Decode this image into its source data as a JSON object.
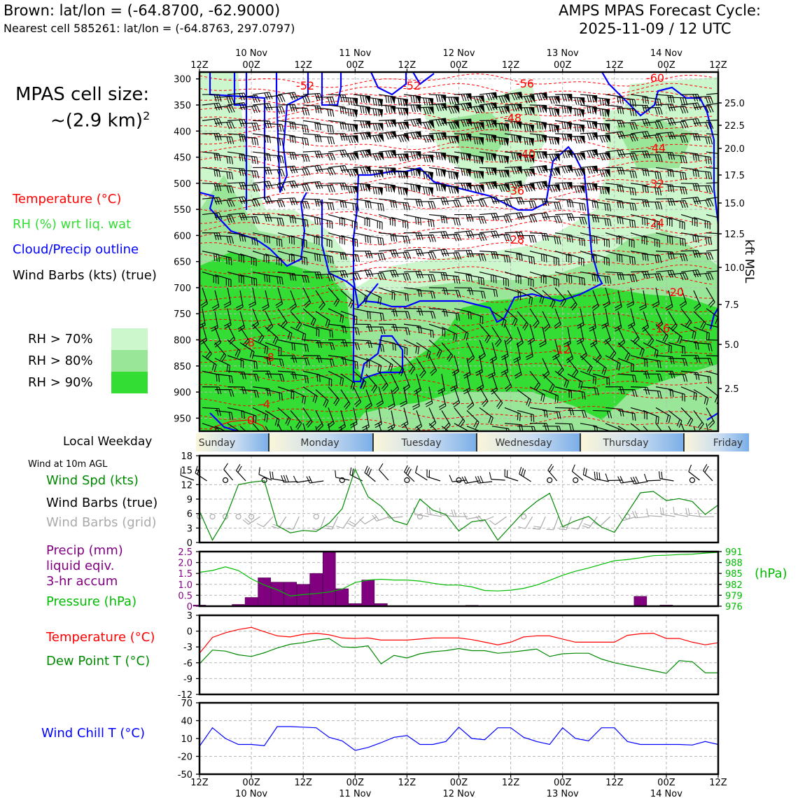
{
  "header": {
    "station_line": "Brown: lat/lon = (-64.8700, -62.9000)",
    "cell_line": "Nearest cell 585261: lat/lon = (-64.8763, 297.0797)",
    "cycle_line1": "AMPS MPAS Forecast Cycle:",
    "cycle_line2": "2025-11-09 / 12 UTC"
  },
  "left_panel": {
    "cell_size_label": "MPAS cell size:",
    "cell_size_value": "~(2.9 km)",
    "cell_size_exp": "2",
    "legend": {
      "temperature": "Temperature (°C)",
      "rh": "RH (%) wrt liq. wat",
      "cloud": "Cloud/Precip outline",
      "wind": "Wind Barbs (kts) (true)"
    },
    "rh_legend": [
      {
        "label": "RH > 70%",
        "color": "#ccf7cc"
      },
      {
        "label": "RH > 80%",
        "color": "#99e699"
      },
      {
        "label": "RH > 90%",
        "color": "#33dd33"
      }
    ],
    "local_weekday_label": "Local Weekday",
    "wind_10m_label": "Wind at 10m AGL",
    "wind_legend": {
      "speed": "Wind Spd (kts)",
      "barbs_true": "Wind Barbs (true)",
      "barbs_grid": "Wind Barbs (grid)"
    },
    "precip_legend": {
      "line1": "Precip (mm)",
      "line2": "liquid eqiv.",
      "line3": "3-hr accum"
    },
    "pressure_legend": "Pressure (hPa)",
    "temp_legend": "Temperature (°C)",
    "dew_legend": "Dew Point T (°C)",
    "windchill_legend": "Wind Chill T (°C)"
  },
  "time_axis": {
    "ticks": [
      "12Z",
      "00Z",
      "12Z",
      "00Z",
      "12Z",
      "00Z",
      "12Z",
      "00Z",
      "12Z",
      "00Z",
      "12Z"
    ],
    "dates": [
      "10 Nov",
      "11 Nov",
      "12 Nov",
      "13 Nov",
      "14 Nov"
    ],
    "weekdays": [
      "Sunday",
      "Monday",
      "Tuesday",
      "Wednesday",
      "Thursday",
      "Friday"
    ]
  },
  "colors": {
    "temperature": "#ff0000",
    "rh_label": "#33dd33",
    "cloud": "#0000ff",
    "wind_speed": "#008800",
    "barbs_grid": "#aaaaaa",
    "precip": "#800080",
    "pressure": "#00bb00",
    "dewpoint": "#008800",
    "windchill": "#0000ff"
  },
  "chart_data": [
    {
      "type": "heatmap",
      "y_ticks": [
        "300",
        "350",
        "400",
        "450",
        "500",
        "550",
        "600",
        "650",
        "700",
        "750",
        "800",
        "850",
        "900",
        "950"
      ],
      "y_right_ticks": [
        "25.0",
        "22.5",
        "20.0",
        "17.5",
        "15.0",
        "12.5",
        "10.0",
        "7.5",
        "5.0",
        "2.5"
      ],
      "y_right_label": "kft MSL",
      "temperature_contour_labels": [
        "-52",
        "-52",
        "-56",
        "-60",
        "-48",
        "-40",
        "-44",
        "-36",
        "-32",
        "-28",
        "-24",
        "-20",
        "-16",
        "-12",
        "-8",
        "-8",
        "-4",
        "0"
      ]
    },
    {
      "type": "line",
      "name": "wind_speed_10m",
      "ylim": [
        0,
        18
      ],
      "y_ticks": [
        "0",
        "3",
        "6",
        "9",
        "12",
        "15",
        "18"
      ],
      "x_hours": [
        0,
        3,
        6,
        9,
        12,
        15,
        18,
        21,
        24,
        27,
        30,
        33,
        36,
        39,
        42,
        45,
        48,
        51,
        54,
        57,
        60,
        63,
        66,
        69,
        72,
        75,
        78,
        81,
        84,
        87,
        90,
        93,
        96,
        99,
        102,
        105,
        108,
        111,
        114,
        117,
        120
      ],
      "values": [
        6.5,
        0.5,
        5,
        12,
        12.5,
        12.8,
        3.5,
        2,
        2.5,
        2.3,
        4,
        7,
        15.2,
        9.5,
        7.5,
        4.5,
        3.7,
        9,
        6.7,
        5.8,
        2.4,
        4.3,
        4.7,
        0.5,
        3.4,
        6.3,
        8.5,
        10.2,
        3.3,
        4.5,
        5.4,
        3.2,
        2.1,
        6.2,
        10.3,
        10.6,
        8.7,
        9.1,
        8.5,
        5.8,
        7.8
      ]
    },
    {
      "type": "bar",
      "name": "precip_3hr",
      "ylim": [
        0,
        2.5
      ],
      "y_ticks": [
        "0",
        "0.5",
        "1.0",
        "1.5",
        "2.0",
        "2.5"
      ],
      "x_hours": [
        0,
        3,
        6,
        9,
        12,
        15,
        18,
        21,
        24,
        27,
        30,
        33,
        36,
        39,
        42,
        45,
        48,
        51,
        54,
        57,
        60,
        63,
        66,
        69,
        72,
        75,
        78,
        81,
        84,
        87,
        90,
        93,
        96,
        99,
        102,
        105,
        108,
        111,
        114,
        117,
        120
      ],
      "values": [
        0.05,
        0,
        0,
        0.08,
        0.4,
        1.3,
        1.1,
        1.1,
        1.0,
        1.5,
        2.5,
        0.8,
        0.12,
        1.2,
        0.12,
        0,
        0,
        0,
        0,
        0,
        0,
        0.04,
        0,
        0,
        0,
        0,
        0,
        0,
        0,
        0,
        0,
        0,
        0,
        0,
        0.45,
        0,
        0.05,
        0,
        0,
        0,
        0
      ]
    },
    {
      "type": "line",
      "name": "pressure",
      "ylim": [
        976,
        991
      ],
      "y_ticks": [
        "976",
        "979",
        "982",
        "985",
        "988",
        "991"
      ],
      "y_label": "(hPa)",
      "x_hours": [
        0,
        3,
        6,
        9,
        12,
        15,
        18,
        21,
        24,
        27,
        30,
        33,
        36,
        39,
        42,
        45,
        48,
        51,
        54,
        57,
        60,
        63,
        66,
        69,
        72,
        75,
        78,
        81,
        84,
        87,
        90,
        93,
        96,
        99,
        102,
        105,
        108,
        111,
        114,
        117,
        120
      ],
      "values": [
        985.3,
        985.8,
        986.8,
        985.8,
        983.5,
        981.8,
        980.5,
        978.8,
        979.2,
        979.5,
        979.9,
        980.7,
        982.5,
        983.2,
        983.4,
        983.2,
        983.2,
        982.9,
        982.3,
        981.8,
        981.8,
        981.3,
        980.3,
        980.2,
        980.4,
        980.9,
        981.8,
        983.1,
        984.5,
        985.6,
        986.5,
        987.5,
        988.5,
        988.8,
        989.3,
        989.9,
        990.0,
        990.2,
        990.3,
        990.6,
        990.8
      ]
    },
    {
      "type": "line",
      "name": "temperature_dewpoint",
      "ylim": [
        -12,
        3
      ],
      "y_ticks": [
        "-12",
        "-9",
        "-6",
        "-3",
        "0",
        "3"
      ],
      "x_hours": [
        0,
        3,
        6,
        9,
        12,
        15,
        18,
        21,
        24,
        27,
        30,
        33,
        36,
        39,
        42,
        45,
        48,
        51,
        54,
        57,
        60,
        63,
        66,
        69,
        72,
        75,
        78,
        81,
        84,
        87,
        90,
        93,
        96,
        99,
        102,
        105,
        108,
        111,
        114,
        117,
        120
      ],
      "series": [
        {
          "name": "temperature",
          "values": [
            -4.2,
            -1.2,
            -0.3,
            0.3,
            0.7,
            -0.1,
            -0.9,
            -1.1,
            -0.6,
            -0.4,
            -0.7,
            -1.3,
            -1.4,
            -1.3,
            -1.7,
            -1.7,
            -1.7,
            -1.5,
            -1.3,
            -1.3,
            -1.3,
            -1.6,
            -2.1,
            -2.6,
            -2.1,
            -1.1,
            -0.9,
            -0.9,
            -1.5,
            -2.1,
            -2.1,
            -2.1,
            -2.1,
            -0.8,
            -0.5,
            -0.4,
            -1.4,
            -1.4,
            -2.1,
            -2.6,
            -2.2
          ]
        },
        {
          "name": "dewpoint",
          "values": [
            -6.2,
            -3.6,
            -3.8,
            -4.5,
            -4.8,
            -4.1,
            -3.2,
            -2.5,
            -2.2,
            -1.7,
            -1.4,
            -3.0,
            -3.1,
            -2.8,
            -6.2,
            -4.6,
            -5.1,
            -4.3,
            -3.9,
            -3.7,
            -3.3,
            -3.7,
            -3.7,
            -4.2,
            -4.0,
            -3.7,
            -3.4,
            -4.8,
            -4.3,
            -4.2,
            -4.2,
            -5.3,
            -6.0,
            -6.5,
            -7.0,
            -7.5,
            -8.0,
            -5.6,
            -5.8,
            -7.9,
            -7.9
          ]
        }
      ]
    },
    {
      "type": "line",
      "name": "wind_chill",
      "ylim": [
        -50,
        70
      ],
      "y_ticks": [
        "-50",
        "-20",
        "10",
        "40",
        "70"
      ],
      "x_hours": [
        0,
        3,
        6,
        9,
        12,
        15,
        18,
        21,
        24,
        27,
        30,
        33,
        36,
        39,
        42,
        45,
        48,
        51,
        54,
        57,
        60,
        63,
        66,
        69,
        72,
        75,
        78,
        81,
        84,
        87,
        90,
        93,
        96,
        99,
        102,
        105,
        108,
        111,
        114,
        117,
        120
      ],
      "values": [
        -3,
        28,
        10,
        0,
        0,
        -2,
        30,
        30,
        29,
        28,
        12,
        6,
        -10,
        -5,
        3,
        12,
        15,
        0,
        0,
        5,
        29,
        10,
        8,
        28,
        28,
        12,
        5,
        0,
        28,
        10,
        6,
        28,
        28,
        5,
        0,
        0,
        0,
        0,
        -1,
        5,
        0
      ]
    }
  ]
}
